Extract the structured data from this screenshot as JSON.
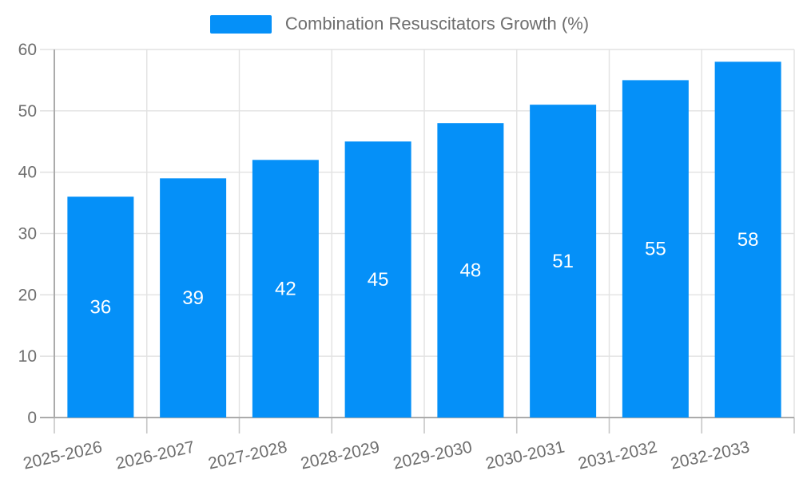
{
  "legend": {
    "label": "Combination Resuscitators Growth (%)"
  },
  "chart_data": {
    "type": "bar",
    "title": "Combination Resuscitators Growth (%)",
    "categories": [
      "2025-2026",
      "2026-2027",
      "2027-2028",
      "2028-2029",
      "2029-2030",
      "2030-2031",
      "2031-2032",
      "2032-2033"
    ],
    "values": [
      36,
      39,
      42,
      45,
      48,
      51,
      55,
      58
    ],
    "xlabel": "",
    "ylabel": "",
    "ylim": [
      0,
      60
    ],
    "yticks": [
      0,
      10,
      20,
      30,
      40,
      50,
      60
    ],
    "grid": true,
    "legend_position": "top-center",
    "value_label_position": "inside-center",
    "x_label_rotation_deg": -12.5
  },
  "colors": {
    "bar": "#0590f8",
    "bar_value_label": "#ffffff",
    "grid_line": "#e2e2e2",
    "axis_line": "#ababab",
    "x_tick": "#c6c6c6",
    "y_tick": "#e2e2e2",
    "tick_label": "#6e6e6e",
    "legend_text": "#6e6e6e",
    "background": "#ffffff"
  }
}
